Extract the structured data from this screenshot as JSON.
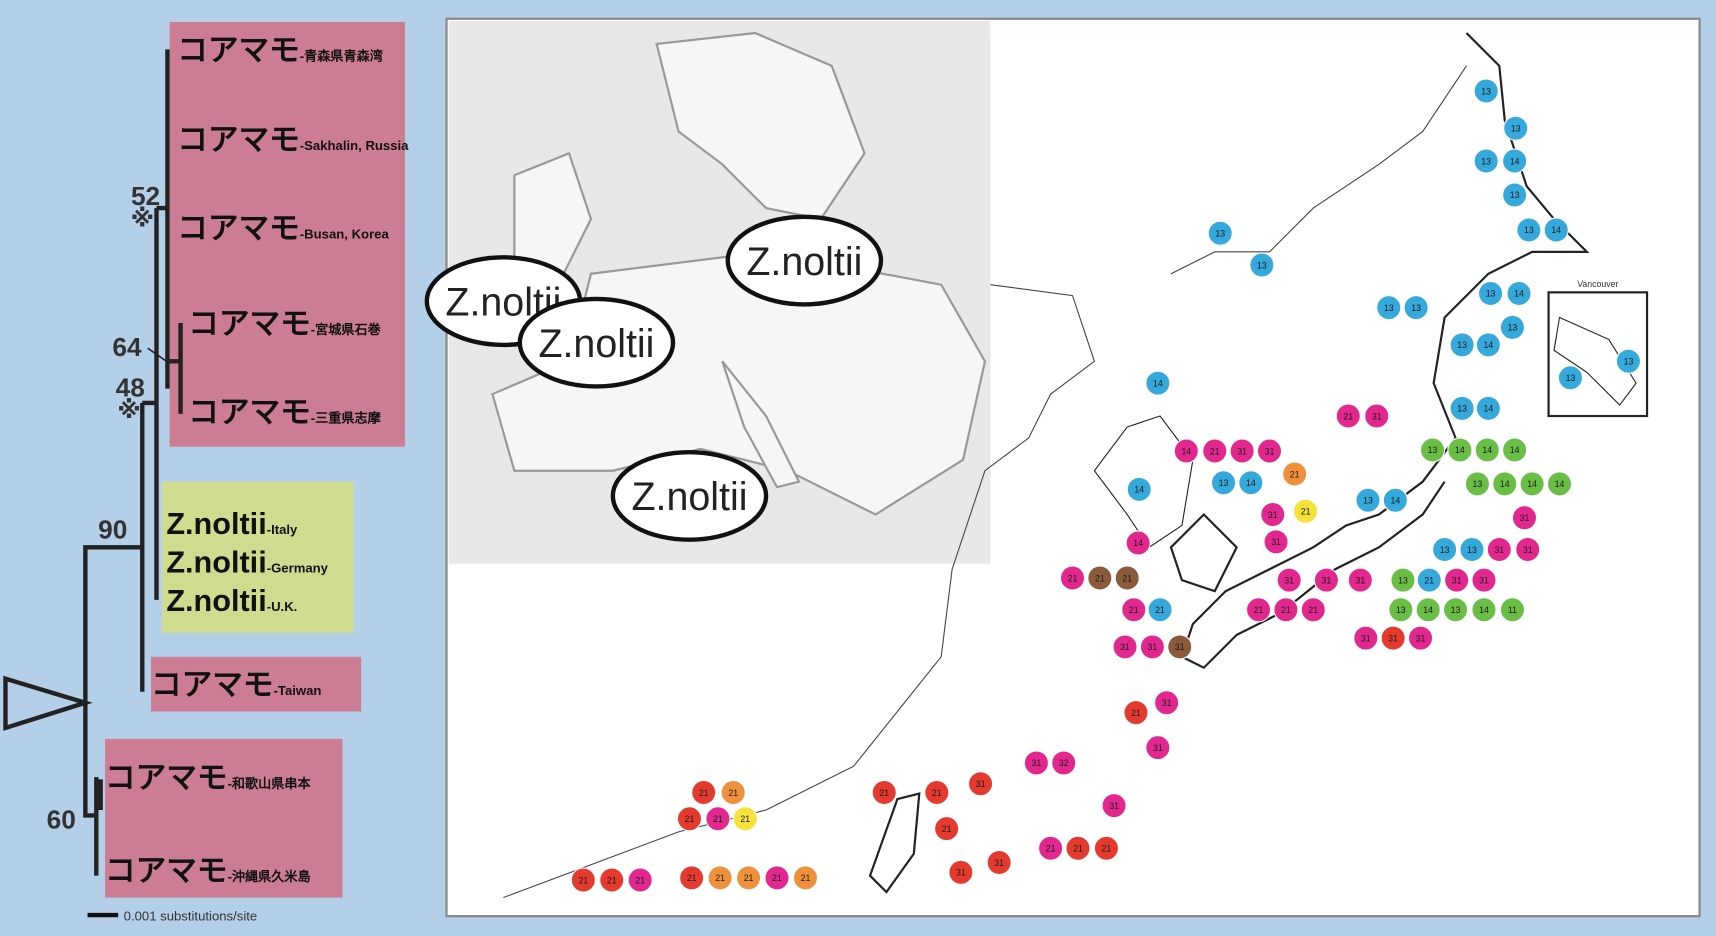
{
  "tree": {
    "leaves": [
      {
        "name": "コアマモ",
        "sub": "-青森県青森湾"
      },
      {
        "name": "コアマモ",
        "sub": "-Sakhalin, Russia"
      },
      {
        "name": "コアマモ",
        "sub": "-Busan, Korea"
      },
      {
        "name": "コアマモ",
        "sub": "-宮城県石巻"
      },
      {
        "name": "コアマモ",
        "sub": "-三重県志摩"
      },
      {
        "name": "Z.noltii",
        "sub": "-Italy"
      },
      {
        "name": "Z.noltii",
        "sub": "-Germany"
      },
      {
        "name": "Z.noltii",
        "sub": "-U.K."
      },
      {
        "name": "コアマモ",
        "sub": "-Taiwan"
      },
      {
        "name": "コアマモ",
        "sub": "-和歌山県串本"
      },
      {
        "name": "コアマモ",
        "sub": "-沖縄県久米島"
      }
    ],
    "supports": [
      "52",
      "※",
      "64",
      "48",
      "※",
      "90",
      "60"
    ],
    "scale": "0.001 substitutions/site"
  },
  "map": {
    "europe_labels": [
      "Z.noltii",
      "Z.noltii",
      "Z.noltii",
      "Z.noltii"
    ],
    "inset": "Vancouver",
    "markers": {
      "labels": [
        "13",
        "13",
        "13",
        "14",
        "13",
        "13",
        "14",
        "13",
        "13",
        "13",
        "13",
        "13",
        "14",
        "13",
        "13",
        "14",
        "13",
        "14",
        "13",
        "13",
        "14",
        "21",
        "31",
        "14",
        "21",
        "31",
        "31",
        "13",
        "14",
        "21",
        "14",
        "13",
        "14",
        "13",
        "14",
        "14",
        "14",
        "13",
        "14",
        "14",
        "14",
        "31",
        "31",
        "21",
        "14",
        "31",
        "13",
        "13",
        "31",
        "31",
        "21",
        "21",
        "21",
        "31",
        "31",
        "31",
        "13",
        "21",
        "31",
        "31",
        "21",
        "21",
        "21",
        "21",
        "21",
        "13",
        "14",
        "13",
        "14",
        "11",
        "31",
        "31",
        "31",
        "31",
        "31",
        "31",
        "21",
        "31",
        "31",
        "31",
        "31",
        "32",
        "21",
        "21",
        "31",
        "21",
        "31",
        "31",
        "21",
        "21",
        "21",
        "21",
        "21",
        "21",
        "21",
        "21",
        "21",
        "21",
        "21",
        "21",
        "21",
        "21",
        "21",
        "21"
      ],
      "colors": [
        "#35a8dc",
        "#35a8dc",
        "#35a8dc",
        "#35a8dc",
        "#35a8dc",
        "#35a8dc",
        "#35a8dc",
        "#35a8dc",
        "#35a8dc",
        "#35a8dc",
        "#35a8dc",
        "#35a8dc",
        "#35a8dc",
        "#35a8dc",
        "#35a8dc",
        "#35a8dc",
        "#35a8dc",
        "#35a8dc",
        "#35a8dc",
        "#35a8dc",
        "#35a8dc",
        "#e2288e",
        "#e2288e",
        "#e2288e",
        "#e2288e",
        "#e2288e",
        "#e2288e",
        "#35a8dc",
        "#35a8dc",
        "#f0903a",
        "#35a8dc",
        "#35a8dc",
        "#35a8dc",
        "#6abd45",
        "#6abd45",
        "#6abd45",
        "#6abd45",
        "#6abd45",
        "#6abd45",
        "#6abd45",
        "#6abd45",
        "#e2288e",
        "#e2288e",
        "#f5e23a",
        "#e2288e",
        "#e2288e",
        "#35a8dc",
        "#35a8dc",
        "#e2288e",
        "#e2288e",
        "#e2288e",
        "#8a5a3a",
        "#8a5a3a",
        "#e2288e",
        "#e2288e",
        "#e2288e",
        "#6abd45",
        "#35a8dc",
        "#e2288e",
        "#e2288e",
        "#e2288e",
        "#35a8dc",
        "#e2288e",
        "#e2288e",
        "#e2288e",
        "#6abd45",
        "#6abd45",
        "#6abd45",
        "#6abd45",
        "#6abd45",
        "#e2288e",
        "#e2288e",
        "#8a5a3a",
        "#e2288e",
        "#e53a2f",
        "#e2288e",
        "#e53a2f",
        "#e2288e",
        "#e2288e",
        "#e2288e",
        "#e2288e",
        "#e2288e",
        "#e53a2f",
        "#e53a2f",
        "#e53a2f",
        "#e53a2f",
        "#e53a2f",
        "#e53a2f",
        "#e2288e",
        "#e53a2f",
        "#e53a2f",
        "#e53a2f",
        "#f0903a",
        "#e53a2f",
        "#e2288e",
        "#f5e23a",
        "#e53a2f",
        "#e53a2f",
        "#e2288e",
        "#e53a2f",
        "#f0903a",
        "#f0903a",
        "#e2288e",
        "#f0903a"
      ]
    }
  }
}
